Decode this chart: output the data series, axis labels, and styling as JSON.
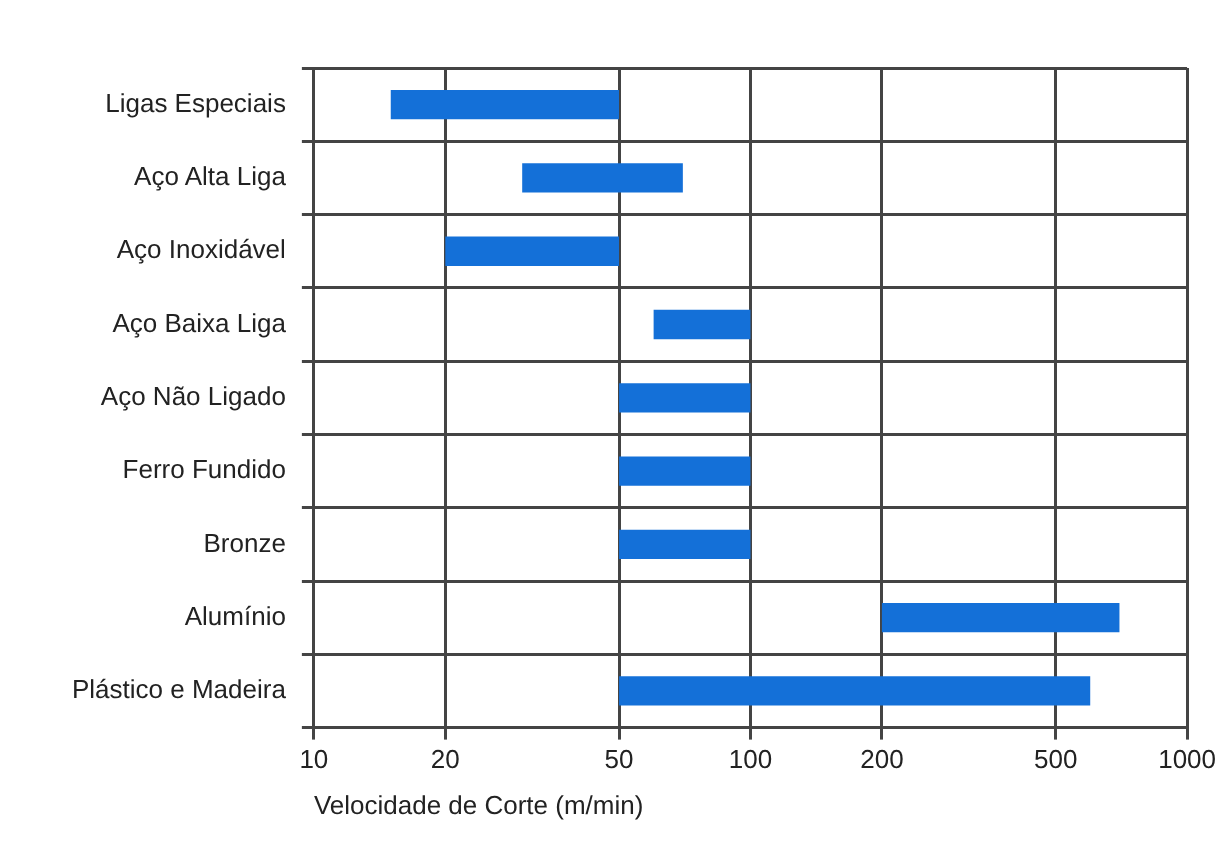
{
  "chart_data": {
    "type": "bar",
    "orientation": "horizontal",
    "xlabel": "Velocidade de Corte (m/min)",
    "categories": [
      "Ligas Especiais",
      "Aço Alta Liga",
      "Aço Inoxidável",
      "Aço Baixa Liga",
      "Aço Não Ligado",
      "Ferro Fundido",
      "Bronze",
      "Alumínio",
      "Plástico e Madeira"
    ],
    "base": [
      15,
      30,
      20,
      60,
      50,
      50,
      50,
      200,
      50
    ],
    "values": [
      35,
      40,
      30,
      40,
      50,
      50,
      50,
      500,
      550
    ],
    "color": "#1470d8",
    "log": "x",
    "xlim": [
      10,
      1000
    ],
    "xticks": [
      10,
      20,
      50,
      100,
      200,
      500,
      1000
    ],
    "grid": true,
    "legend": false
  }
}
